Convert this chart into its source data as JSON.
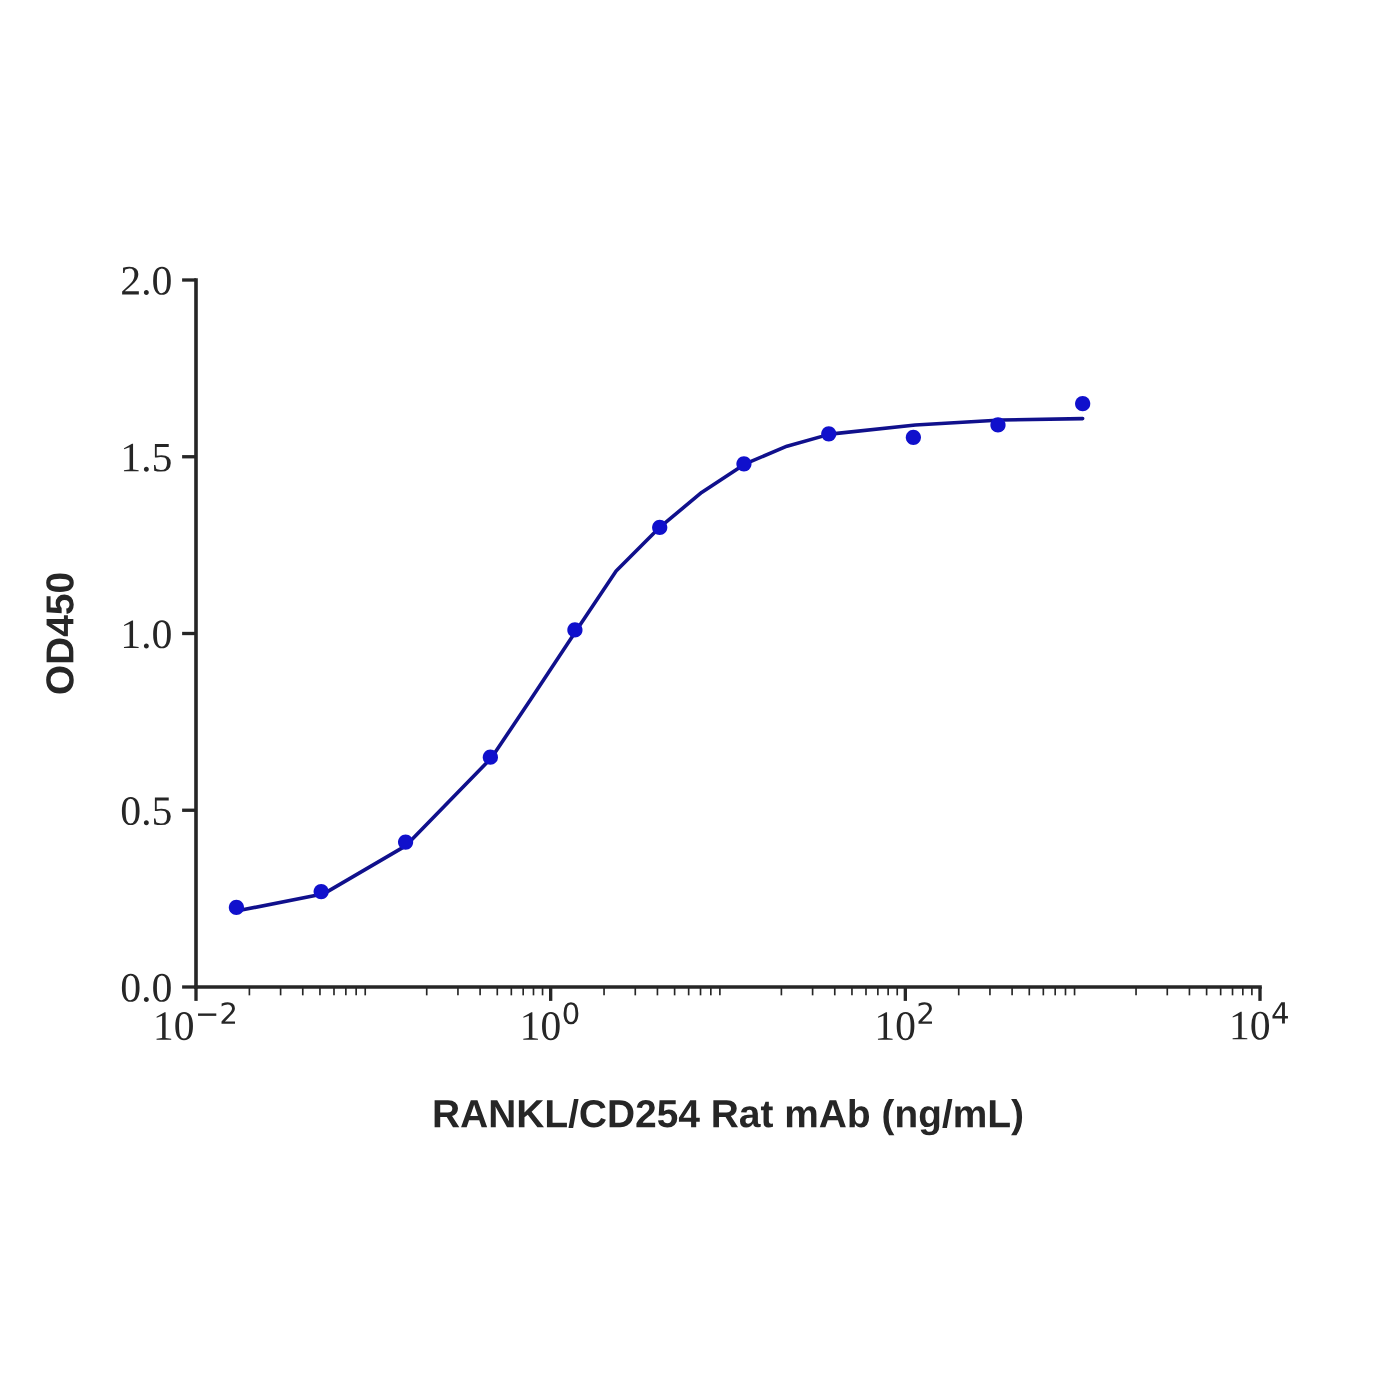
{
  "chart_data": {
    "type": "scatter",
    "xlabel": "RANKL/CD254 Rat mAb (ng/mL)",
    "ylabel": "OD450",
    "log": "x",
    "xlim": [
      0.01,
      10000
    ],
    "xticks": [
      {
        "value": 0.01,
        "label": "10$^{−2}$"
      },
      {
        "value": 1,
        "label": "10$^{0}$"
      },
      {
        "value": 100,
        "label": "10$^{2}$"
      },
      {
        "value": 10000,
        "label": "10$^{4}$"
      }
    ],
    "ylim": [
      0,
      2
    ],
    "yticks": [
      {
        "value": 0,
        "label": "0.0"
      },
      {
        "value": 0.5,
        "label": "0.5"
      },
      {
        "value": 1,
        "label": "1.0"
      },
      {
        "value": 1.5,
        "label": "1.5"
      },
      {
        "value": 2,
        "label": "2.0"
      }
    ],
    "grid": false,
    "legend": false,
    "series": [
      {
        "color": "#1010cc",
        "marker": "circle",
        "x": [
          0.0169,
          0.0508,
          0.152,
          0.457,
          1.37,
          4.12,
          12.3,
          37,
          111,
          333,
          1000
        ],
        "values": [
          0.225,
          0.27,
          0.41,
          0.65,
          1.01,
          1.3,
          1.48,
          1.565,
          1.555,
          1.59,
          1.65
        ]
      },
      {
        "type": "line",
        "color": "#10108c",
        "line_style": "solid",
        "x": [
          0.0166,
          0.0527,
          0.153,
          0.463,
          0.771,
          1.38,
          2.34,
          4.07,
          7.1,
          12.4,
          21.5,
          37.6,
          114,
          347,
          1000
        ],
        "values": [
          0.214,
          0.264,
          0.4,
          0.648,
          0.813,
          1.005,
          1.177,
          1.298,
          1.399,
          1.479,
          1.53,
          1.564,
          1.59,
          1.604,
          1.608
        ]
      }
    ]
  }
}
